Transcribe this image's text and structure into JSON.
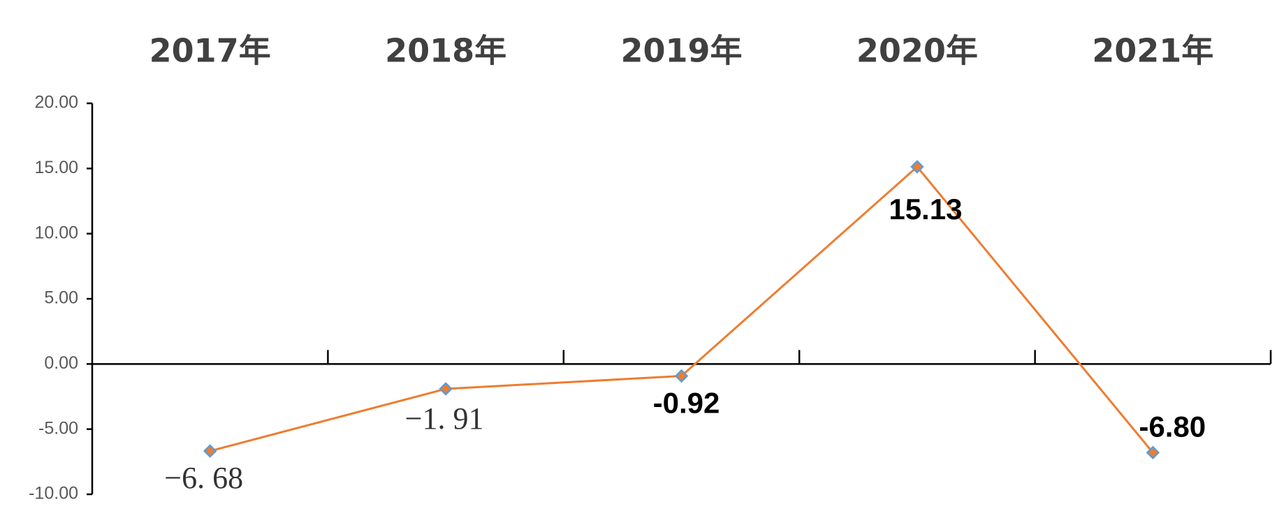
{
  "chart_data": {
    "type": "line",
    "categories": [
      "2017年",
      "2018年",
      "2019年",
      "2020年",
      "2021年"
    ],
    "series": [
      {
        "color": "#ed7d31",
        "marker_color": "#5b9bd5",
        "values": [
          -6.68,
          -1.91,
          -0.92,
          15.13,
          -6.8
        ],
        "value_labels": [
          "−6. 68",
          "−1. 91",
          "-0.92",
          "15.13",
          "-6.80"
        ]
      }
    ],
    "ylim": [
      -10,
      20
    ],
    "yticks": [
      {
        "value": -10,
        "label": "-10.00"
      },
      {
        "value": -5,
        "label": "-5.00"
      },
      {
        "value": 0,
        "label": "0.00"
      },
      {
        "value": 5,
        "label": "5.00"
      },
      {
        "value": 10,
        "label": "10.00"
      },
      {
        "value": 15,
        "label": "15.00"
      },
      {
        "value": 20,
        "label": "20.00"
      }
    ]
  }
}
